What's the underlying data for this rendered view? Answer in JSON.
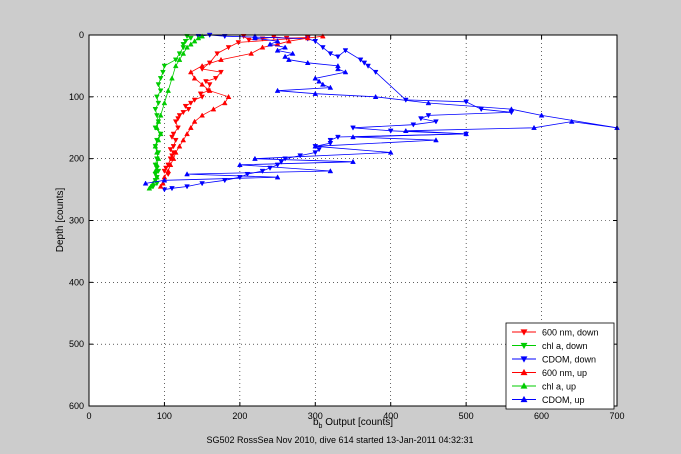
{
  "figure": {
    "footer_text": "SG502 RossSea Nov 2010, dive 614 started 13-Jan-2011 04:32:31"
  },
  "chart_data": {
    "type": "line",
    "title": "",
    "xlabel_main": "b",
    "xlabel_sub": "b",
    "xlabel_rest": " Output [counts]",
    "ylabel": "Depth [counts]",
    "xlim": [
      0,
      700
    ],
    "ylim": [
      0,
      600
    ],
    "y_reversed": true,
    "grid": true,
    "x_ticks": [
      0,
      100,
      200,
      300,
      400,
      500,
      600,
      700
    ],
    "y_ticks": [
      0,
      100,
      200,
      300,
      400,
      500,
      600
    ],
    "legend": {
      "location": "bottom-right"
    },
    "series": [
      {
        "name": "600 nm, down",
        "color": "#ff0000",
        "marker": "triangle-down",
        "x": [
          205,
          212,
          230,
          245,
          262,
          290,
          198,
          185,
          170,
          160,
          150,
          175,
          168,
          155,
          160,
          158,
          148,
          150,
          140,
          135,
          128,
          132,
          125,
          120,
          118,
          115,
          118,
          112,
          110,
          115,
          112,
          108,
          112,
          110,
          108,
          105,
          102,
          100,
          105
        ],
        "y": [
          2,
          8,
          6,
          3,
          5,
          4,
          12,
          20,
          30,
          45,
          55,
          60,
          70,
          75,
          80,
          90,
          95,
          100,
          105,
          110,
          115,
          120,
          125,
          130,
          135,
          140,
          150,
          160,
          165,
          170,
          180,
          185,
          190,
          195,
          200,
          210,
          215,
          220,
          225
        ]
      },
      {
        "name": "chl a, down",
        "color": "#00cc00",
        "marker": "triangle-down",
        "x": [
          130,
          135,
          128,
          125,
          125,
          120,
          115,
          100,
          98,
          95,
          92,
          95,
          90,
          92,
          88,
          90,
          92,
          88,
          95,
          90,
          88,
          92,
          90,
          88,
          90,
          92,
          88,
          90,
          88,
          90,
          85
        ],
        "y": [
          2,
          5,
          10,
          15,
          20,
          30,
          40,
          50,
          60,
          70,
          80,
          90,
          100,
          110,
          120,
          130,
          140,
          150,
          160,
          170,
          180,
          190,
          200,
          210,
          215,
          220,
          225,
          230,
          235,
          240,
          245
        ]
      },
      {
        "name": "CDOM, down",
        "color": "#0000ff",
        "marker": "triangle-down",
        "x": [
          145,
          160,
          180,
          290,
          300,
          310,
          320,
          330,
          340,
          360,
          365,
          370,
          380,
          420,
          500,
          520,
          560,
          450,
          440,
          460,
          430,
          350,
          400,
          500,
          330,
          320,
          320,
          300,
          305,
          300,
          280,
          260,
          255,
          250,
          240,
          230,
          210,
          200,
          180,
          150,
          130,
          110,
          100
        ],
        "y": [
          2,
          0,
          2,
          6,
          10,
          20,
          30,
          35,
          25,
          40,
          45,
          50,
          60,
          105,
          108,
          120,
          125,
          130,
          135,
          140,
          145,
          150,
          155,
          160,
          165,
          170,
          175,
          180,
          185,
          190,
          195,
          200,
          205,
          210,
          215,
          220,
          225,
          230,
          235,
          240,
          245,
          248,
          250
        ]
      },
      {
        "name": "600 nm, up",
        "color": "#ff0000",
        "marker": "triangle-up",
        "x": [
          95,
          98,
          100,
          105,
          108,
          112,
          115,
          120,
          125,
          130,
          135,
          140,
          150,
          165,
          180,
          185,
          160,
          150,
          140,
          135,
          150,
          175,
          215,
          230,
          250,
          265,
          290,
          310
        ],
        "y": [
          245,
          240,
          230,
          220,
          210,
          200,
          190,
          180,
          170,
          160,
          150,
          140,
          130,
          120,
          110,
          100,
          90,
          80,
          70,
          60,
          50,
          40,
          30,
          20,
          15,
          10,
          5,
          2
        ]
      },
      {
        "name": "chl a, up",
        "color": "#00cc00",
        "marker": "triangle-up",
        "x": [
          80,
          82,
          85,
          88,
          90,
          88,
          90,
          92,
          90,
          88,
          92,
          95,
          90,
          92,
          95,
          100,
          105,
          110,
          115,
          120,
          125,
          130,
          135,
          140,
          145,
          150
        ],
        "y": [
          248,
          245,
          240,
          235,
          230,
          220,
          210,
          200,
          190,
          180,
          170,
          160,
          150,
          140,
          130,
          110,
          90,
          70,
          50,
          40,
          30,
          20,
          15,
          10,
          5,
          2
        ]
      },
      {
        "name": "CDOM, up",
        "color": "#0000ff",
        "marker": "triangle-up",
        "x": [
          75,
          100,
          250,
          130,
          320,
          200,
          350,
          220,
          400,
          300,
          460,
          350,
          500,
          420,
          590,
          640,
          700,
          600,
          560,
          450,
          380,
          300,
          250,
          320,
          310,
          305,
          300,
          340,
          330,
          330,
          290,
          265,
          260,
          270,
          250,
          260,
          240,
          250,
          220,
          220
        ],
        "y": [
          240,
          235,
          230,
          225,
          220,
          210,
          205,
          200,
          190,
          180,
          170,
          165,
          160,
          155,
          150,
          140,
          150,
          130,
          120,
          110,
          100,
          95,
          90,
          85,
          80,
          75,
          70,
          60,
          55,
          50,
          45,
          40,
          35,
          30,
          25,
          20,
          15,
          10,
          5,
          2
        ]
      }
    ]
  }
}
